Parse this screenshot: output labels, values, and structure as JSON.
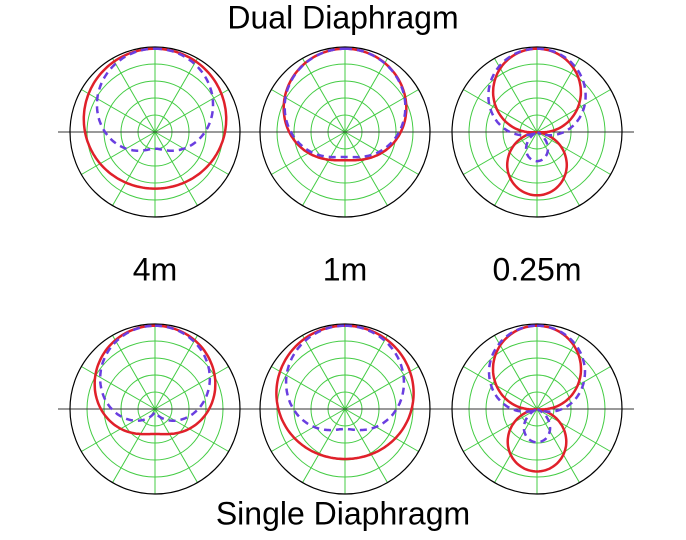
{
  "header": {
    "title": "Dual Diaphragm"
  },
  "distances": [
    "4m",
    "1m",
    "0.25m"
  ],
  "footer": {
    "title": "Single Diaphragm"
  }
}
